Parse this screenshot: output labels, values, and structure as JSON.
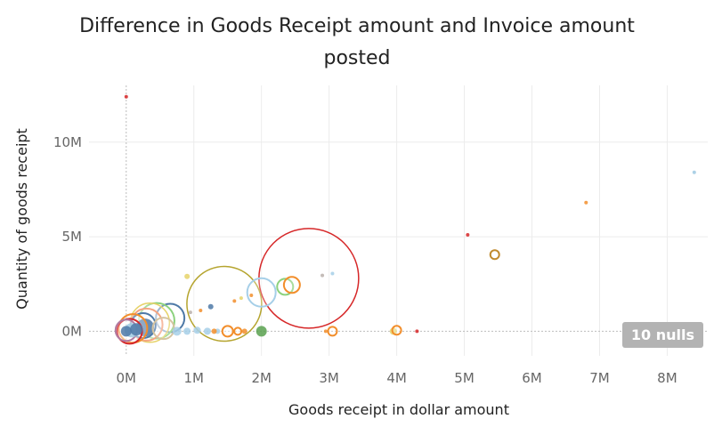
{
  "title_lines": [
    "Difference in Goods Receipt amount and Invoice amount",
    "posted"
  ],
  "null_indicator": "10 nulls",
  "chart_data": {
    "type": "scatter",
    "title": "Difference in Goods Receipt amount and Invoice amount posted",
    "xlabel": "Goods receipt in dollar amount",
    "ylabel": "Quantity of goods receipt",
    "xlim": [
      -0.55,
      8.6
    ],
    "ylim": [
      -1.3,
      13.0
    ],
    "x_unit": "M",
    "y_unit": "M",
    "x_ticks": [
      0,
      1,
      2,
      3,
      4,
      5,
      6,
      7,
      8
    ],
    "x_tick_labels": [
      "0M",
      "1M",
      "2M",
      "3M",
      "4M",
      "5M",
      "6M",
      "7M",
      "8M"
    ],
    "y_ticks": [
      0,
      5,
      10
    ],
    "y_tick_labels": [
      "0M",
      "5M",
      "10M"
    ],
    "grid": true,
    "legend": "none",
    "points": [
      {
        "x": 0.0,
        "y": 12.4,
        "size": 2,
        "color": "#d62728",
        "filled": true
      },
      {
        "x": 8.4,
        "y": 8.4,
        "size": 2,
        "color": "#9ec9e2",
        "filled": true
      },
      {
        "x": 6.8,
        "y": 6.8,
        "size": 2,
        "color": "#f28e2b",
        "filled": true
      },
      {
        "x": 5.05,
        "y": 5.1,
        "size": 2,
        "color": "#d62728",
        "filled": true
      },
      {
        "x": 5.45,
        "y": 4.05,
        "size": 5,
        "color": "#c08a2d",
        "filled": false
      },
      {
        "x": 2.7,
        "y": 2.8,
        "size": 56,
        "color": "#d62728",
        "filled": false
      },
      {
        "x": 1.45,
        "y": 1.45,
        "size": 42,
        "color": "#b5a42e",
        "filled": false
      },
      {
        "x": 2.0,
        "y": 2.05,
        "size": 16,
        "color": "#a6cfe8",
        "filled": false
      },
      {
        "x": 2.35,
        "y": 2.35,
        "size": 9,
        "color": "#8cd17d",
        "filled": false
      },
      {
        "x": 2.45,
        "y": 2.45,
        "size": 9,
        "color": "#f28e2b",
        "filled": false
      },
      {
        "x": 2.9,
        "y": 2.95,
        "size": 2,
        "color": "#bab0ac",
        "filled": true
      },
      {
        "x": 3.05,
        "y": 3.05,
        "size": 2,
        "color": "#a6cfe8",
        "filled": true
      },
      {
        "x": 0.9,
        "y": 2.9,
        "size": 3,
        "color": "#e6d36a",
        "filled": true
      },
      {
        "x": 0.65,
        "y": 0.7,
        "size": 16,
        "color": "#4e79a7",
        "filled": false
      },
      {
        "x": 0.45,
        "y": 0.55,
        "size": 20,
        "color": "#8cd17d",
        "filled": false
      },
      {
        "x": 0.35,
        "y": 0.45,
        "size": 22,
        "color": "#e6d36a",
        "filled": false
      },
      {
        "x": 0.3,
        "y": 0.35,
        "size": 18,
        "color": "#f4a582",
        "filled": false
      },
      {
        "x": 0.25,
        "y": 0.3,
        "size": 14,
        "color": "#4e79a7",
        "filled": false
      },
      {
        "x": 0.28,
        "y": 0.2,
        "size": 10,
        "color": "#4e79a7",
        "filled": true
      },
      {
        "x": 0.1,
        "y": 0.15,
        "size": 16,
        "color": "#f28e2b",
        "filled": false
      },
      {
        "x": 0.05,
        "y": 0.0,
        "size": 14,
        "color": "#d62728",
        "filled": false
      },
      {
        "x": 0.0,
        "y": 0.05,
        "size": 12,
        "color": "#b07aa1",
        "filled": false
      },
      {
        "x": 0.08,
        "y": 0.05,
        "size": 8,
        "color": "#9ec9e2",
        "filled": true
      },
      {
        "x": 0.15,
        "y": 0.1,
        "size": 7,
        "color": "#4e79a7",
        "filled": true
      },
      {
        "x": 0.0,
        "y": 0.0,
        "size": 6,
        "color": "#4e79a7",
        "filled": true
      },
      {
        "x": 0.55,
        "y": 0.15,
        "size": 12,
        "color": "#d5c4a1",
        "filled": false
      },
      {
        "x": 0.75,
        "y": 0.0,
        "size": 5,
        "color": "#a6cfe8",
        "filled": true
      },
      {
        "x": 0.9,
        "y": 0.0,
        "size": 4,
        "color": "#a6cfe8",
        "filled": true
      },
      {
        "x": 1.05,
        "y": 0.05,
        "size": 4,
        "color": "#a6cfe8",
        "filled": true
      },
      {
        "x": 1.2,
        "y": 0.0,
        "size": 4,
        "color": "#a6cfe8",
        "filled": true
      },
      {
        "x": 1.35,
        "y": 0.0,
        "size": 3,
        "color": "#a6cfe8",
        "filled": true
      },
      {
        "x": 0.95,
        "y": 1.0,
        "size": 2,
        "color": "#bab0ac",
        "filled": true
      },
      {
        "x": 1.1,
        "y": 1.1,
        "size": 2,
        "color": "#f28e2b",
        "filled": true
      },
      {
        "x": 1.25,
        "y": 1.3,
        "size": 3,
        "color": "#4e79a7",
        "filled": true
      },
      {
        "x": 1.6,
        "y": 1.6,
        "size": 2,
        "color": "#f28e2b",
        "filled": true
      },
      {
        "x": 1.7,
        "y": 1.75,
        "size": 2,
        "color": "#e6d36a",
        "filled": true
      },
      {
        "x": 1.85,
        "y": 1.9,
        "size": 2,
        "color": "#f28e2b",
        "filled": true
      },
      {
        "x": 1.5,
        "y": 0.0,
        "size": 6,
        "color": "#f28e2b",
        "filled": false
      },
      {
        "x": 1.65,
        "y": 0.0,
        "size": 4,
        "color": "#f28e2b",
        "filled": false
      },
      {
        "x": 1.75,
        "y": 0.0,
        "size": 3,
        "color": "#f28e2b",
        "filled": true
      },
      {
        "x": 1.3,
        "y": 0.0,
        "size": 3,
        "color": "#f28e2b",
        "filled": true
      },
      {
        "x": 2.0,
        "y": 0.0,
        "size": 6,
        "color": "#59a14f",
        "filled": true
      },
      {
        "x": 2.95,
        "y": 0.0,
        "size": 2,
        "color": "#f28e2b",
        "filled": true
      },
      {
        "x": 3.05,
        "y": 0.0,
        "size": 5,
        "color": "#f28e2b",
        "filled": false
      },
      {
        "x": 3.95,
        "y": 0.0,
        "size": 4,
        "color": "#e6d36a",
        "filled": true
      },
      {
        "x": 4.0,
        "y": 0.05,
        "size": 5,
        "color": "#f28e2b",
        "filled": false
      },
      {
        "x": 4.3,
        "y": 0.0,
        "size": 2,
        "color": "#d62728",
        "filled": true
      }
    ]
  }
}
